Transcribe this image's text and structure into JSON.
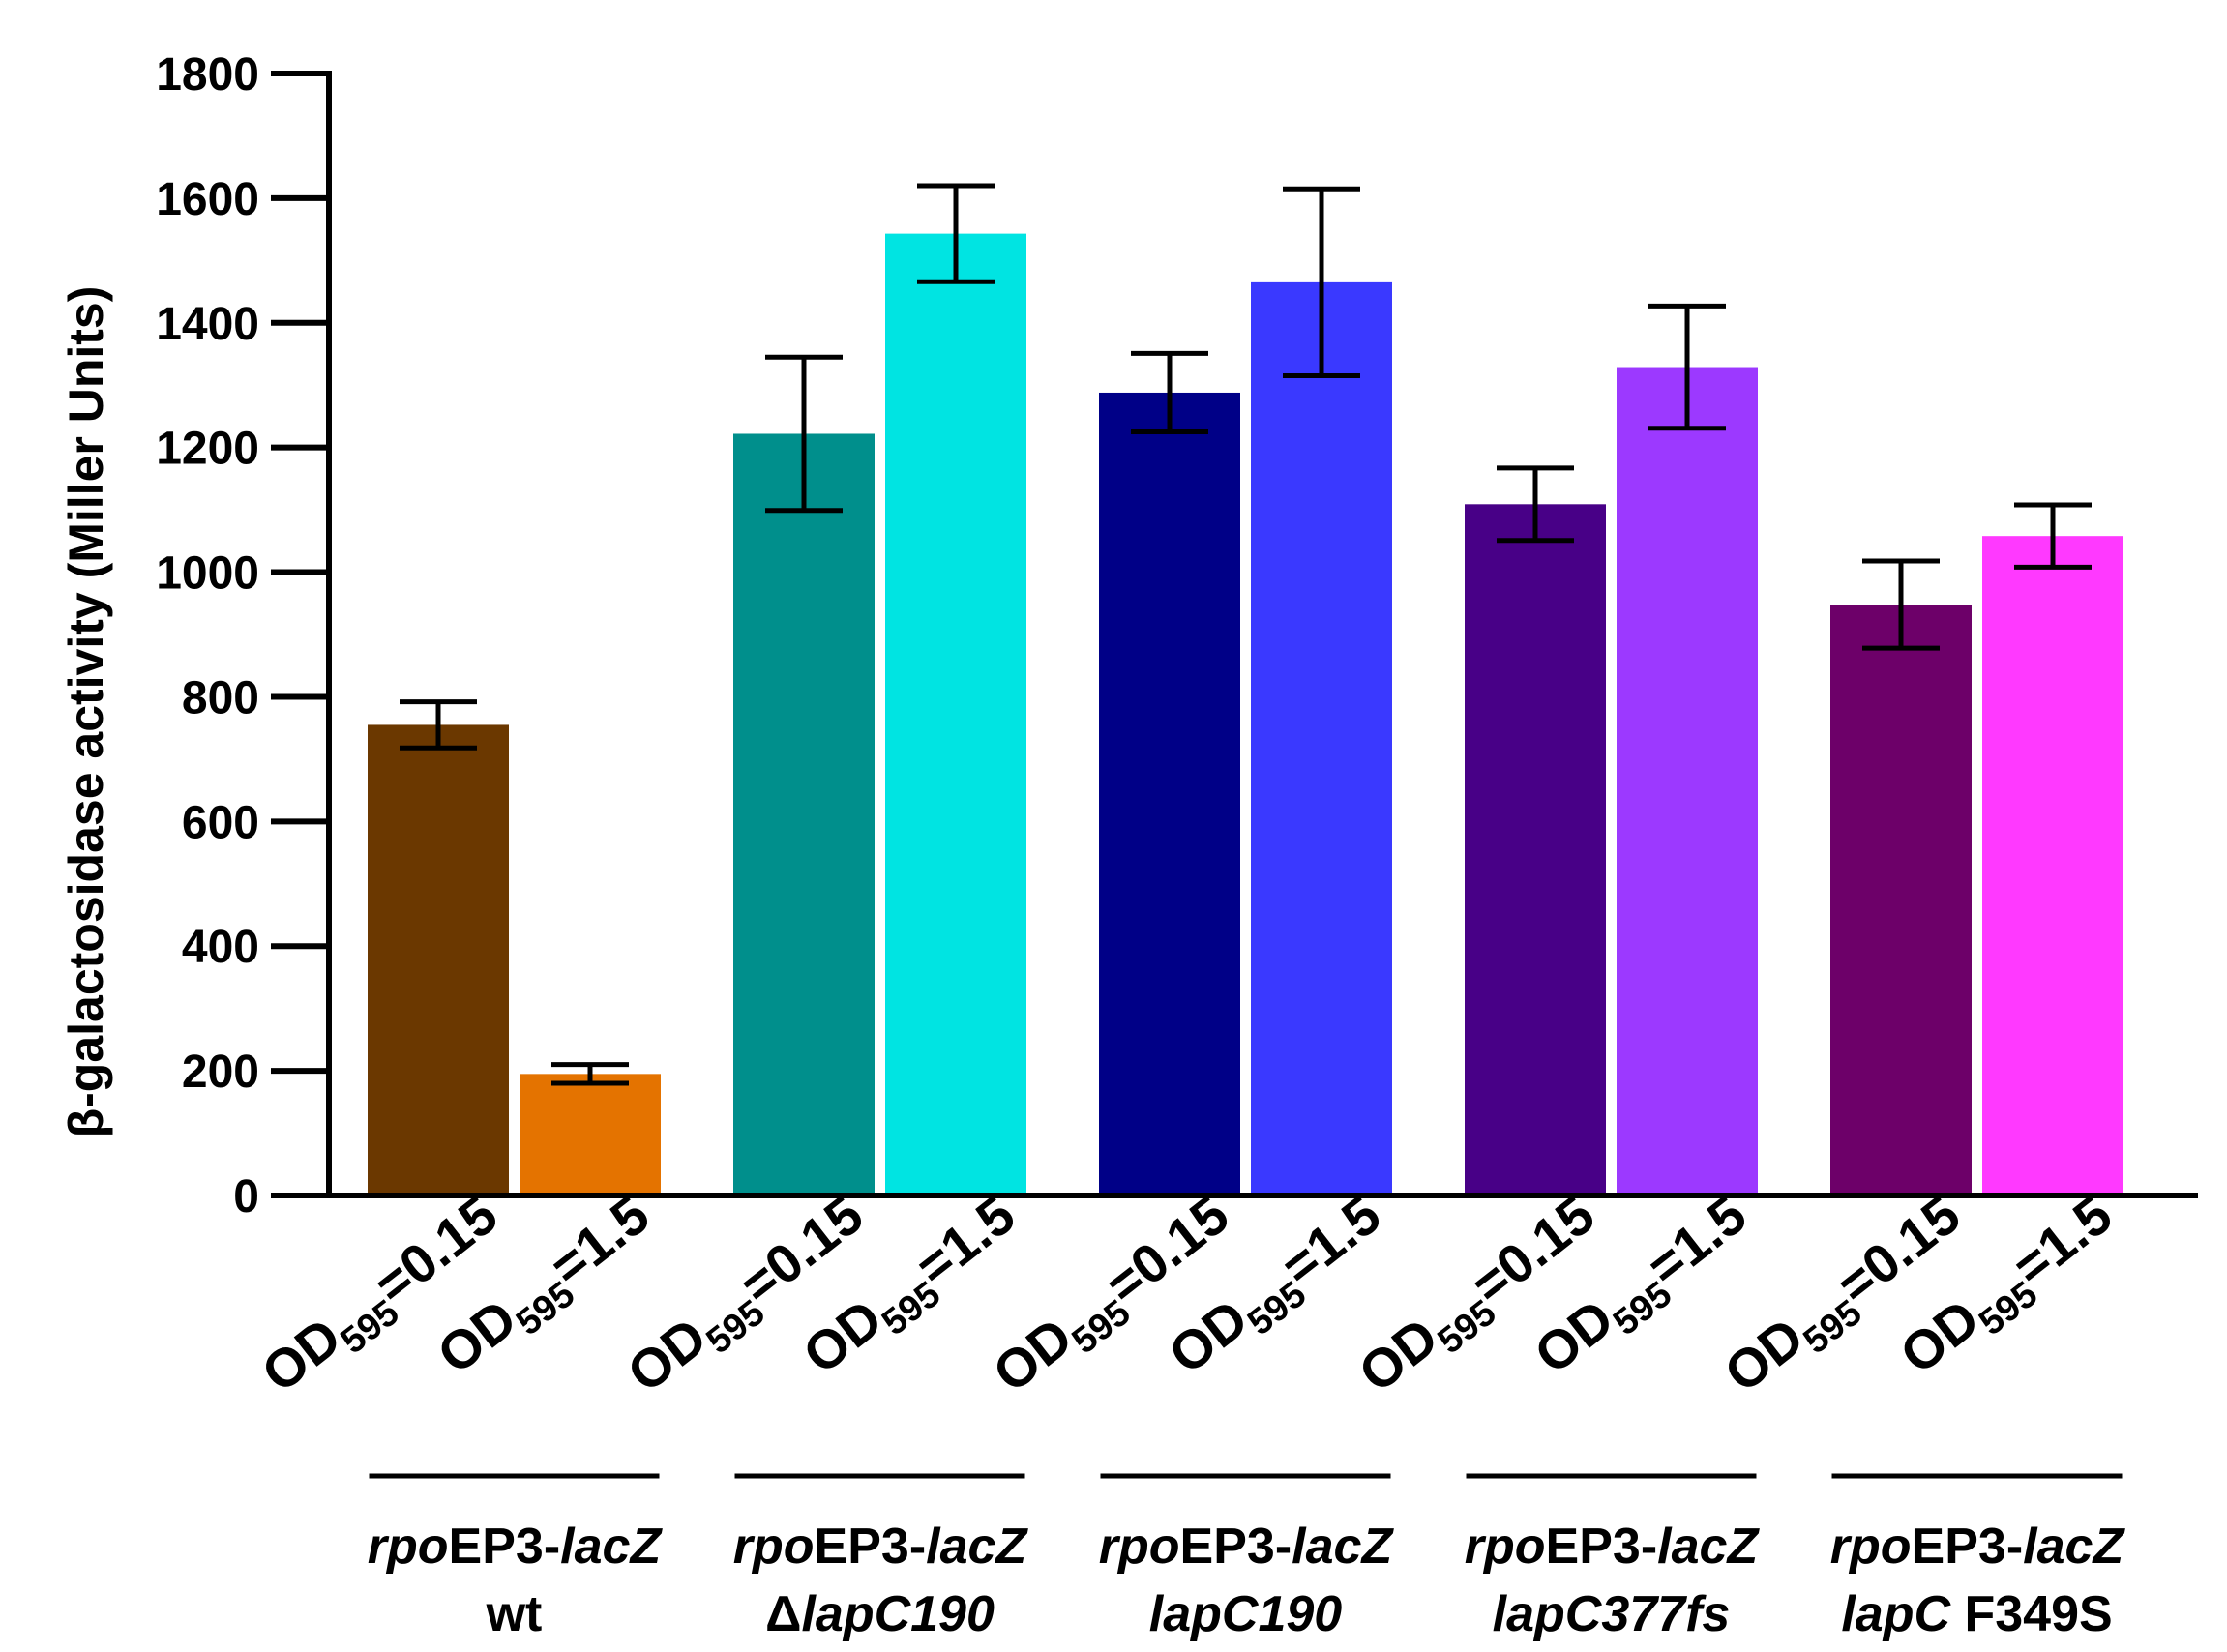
{
  "chart_data": {
    "type": "bar",
    "title": "",
    "xlabel": "",
    "ylabel": "β-galactosidase activity (Miller Units)",
    "ylim": [
      0,
      1800
    ],
    "yticks": [
      0,
      200,
      400,
      600,
      800,
      1000,
      1200,
      1400,
      1600,
      1800
    ],
    "grid": false,
    "categories": [
      {
        "od": "OD",
        "sub": "595",
        "eq": "=0.15"
      },
      {
        "od": "OD",
        "sub": "595",
        "eq": "=1.5"
      },
      {
        "od": "OD",
        "sub": "595",
        "eq": "=0.15"
      },
      {
        "od": "OD",
        "sub": "595",
        "eq": "=1.5"
      },
      {
        "od": "OD",
        "sub": "595",
        "eq": "=0.15"
      },
      {
        "od": "OD",
        "sub": "595",
        "eq": "=1.5"
      },
      {
        "od": "OD",
        "sub": "595",
        "eq": "=0.15"
      },
      {
        "od": "OD",
        "sub": "595",
        "eq": "=1.5"
      },
      {
        "od": "OD",
        "sub": "595",
        "eq": "=0.15"
      },
      {
        "od": "OD",
        "sub": "595",
        "eq": "=1.5"
      }
    ],
    "values": [
      755,
      195,
      1222,
      1543,
      1288,
      1465,
      1109,
      1329,
      948,
      1058
    ],
    "errors": [
      37,
      15,
      123,
      77,
      63,
      150,
      58,
      98,
      70,
      50
    ],
    "colors": [
      "#6B3800",
      "#E47300",
      "#008F8C",
      "#00E4E2",
      "#000087",
      "#3A39FF",
      "#480087",
      "#9C39FF",
      "#6D0069",
      "#FF39FF"
    ],
    "groups": [
      {
        "line1": [
          {
            "t": "rpo",
            "i": true
          },
          {
            "t": "E",
            "i": false
          },
          {
            "t": "P3-",
            "i": false
          },
          {
            "t": "lacZ",
            "i": true
          }
        ],
        "line2": [
          {
            "t": "wt",
            "i": false
          }
        ]
      },
      {
        "line1": [
          {
            "t": "rpo",
            "i": true
          },
          {
            "t": "E",
            "i": false
          },
          {
            "t": "P3-",
            "i": false
          },
          {
            "t": "lacZ",
            "i": true
          }
        ],
        "line2": [
          {
            "t": "Δ",
            "i": false
          },
          {
            "t": "lapC190",
            "i": true
          }
        ]
      },
      {
        "line1": [
          {
            "t": "rpo",
            "i": true
          },
          {
            "t": "E",
            "i": false
          },
          {
            "t": "P3-",
            "i": false
          },
          {
            "t": "lacZ",
            "i": true
          }
        ],
        "line2": [
          {
            "t": "lapC190",
            "i": true
          }
        ]
      },
      {
        "line1": [
          {
            "t": "rpo",
            "i": true
          },
          {
            "t": "E",
            "i": false
          },
          {
            "t": "P3-",
            "i": false
          },
          {
            "t": "lacZ",
            "i": true
          }
        ],
        "line2": [
          {
            "t": "lapC377fs",
            "i": true
          }
        ]
      },
      {
        "line1": [
          {
            "t": "rpo",
            "i": true
          },
          {
            "t": "E",
            "i": false
          },
          {
            "t": "P3-",
            "i": false
          },
          {
            "t": "lacZ",
            "i": true
          }
        ],
        "line2": [
          {
            "t": "lapC",
            "i": true
          },
          {
            "t": " F349S",
            "i": false
          }
        ]
      }
    ]
  }
}
